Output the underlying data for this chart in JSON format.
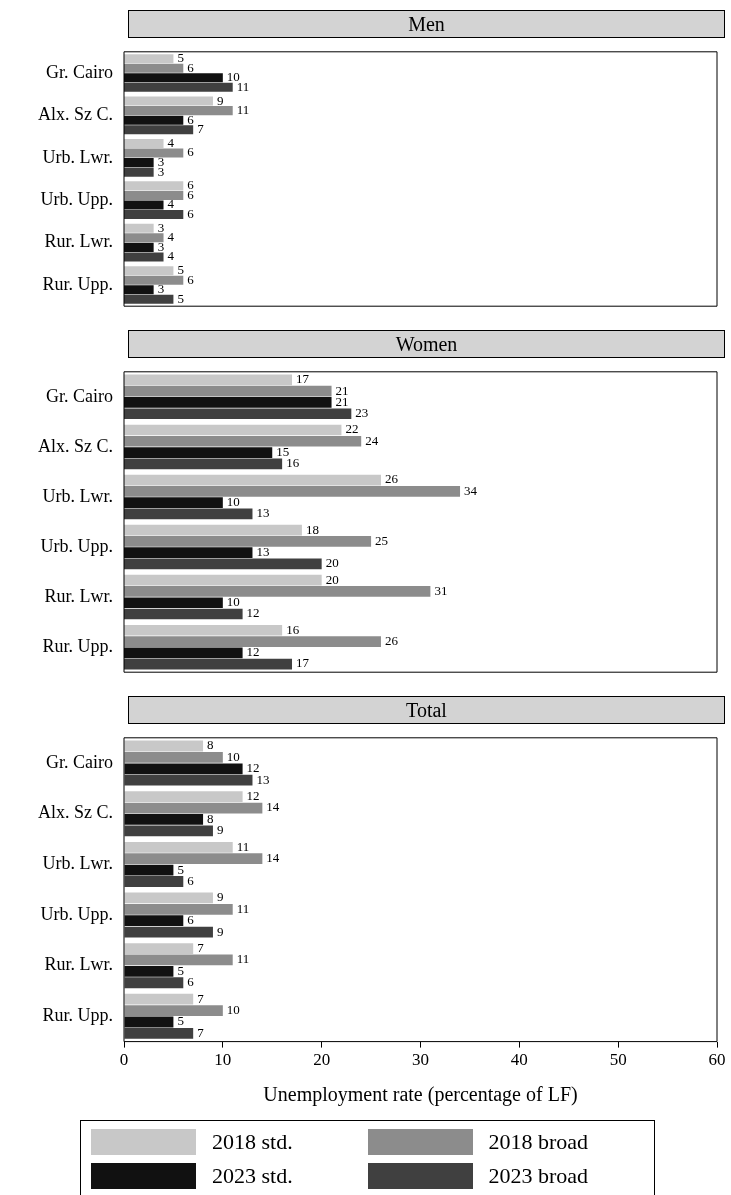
{
  "chart_data": [
    {
      "type": "bar",
      "orientation": "horizontal",
      "title": "Men",
      "categories": [
        "Gr. Cairo",
        "Alx. Sz C.",
        "Urb. Lwr.",
        "Urb. Upp.",
        "Rur. Lwr.",
        "Rur. Upp."
      ],
      "series": [
        {
          "color": "#c8c8c8",
          "values": [
            5,
            9,
            4,
            6,
            3,
            5
          ]
        },
        {
          "color": "#8c8c8c",
          "values": [
            6,
            11,
            6,
            6,
            4,
            6
          ]
        },
        {
          "color": "#111111",
          "values": [
            10,
            6,
            3,
            4,
            3,
            3
          ]
        },
        {
          "color": "#404040",
          "values": [
            11,
            7,
            3,
            6,
            4,
            5
          ]
        }
      ],
      "xlim": [
        0,
        60
      ],
      "xticks": [
        0,
        10,
        20,
        30,
        40,
        50,
        60
      ],
      "tick_labels": "y",
      "data_labels": true,
      "grid": false,
      "legend": false
    },
    {
      "type": "bar",
      "orientation": "horizontal",
      "title": "Women",
      "categories": [
        "Gr. Cairo",
        "Alx. Sz C.",
        "Urb. Lwr.",
        "Urb. Upp.",
        "Rur. Lwr.",
        "Rur. Upp."
      ],
      "series": [
        {
          "color": "#c8c8c8",
          "values": [
            17,
            22,
            26,
            18,
            20,
            16
          ]
        },
        {
          "color": "#8c8c8c",
          "values": [
            21,
            24,
            34,
            25,
            31,
            26
          ]
        },
        {
          "color": "#111111",
          "values": [
            21,
            15,
            10,
            13,
            10,
            12
          ]
        },
        {
          "color": "#404040",
          "values": [
            23,
            16,
            13,
            20,
            12,
            17
          ]
        }
      ],
      "xlim": [
        0,
        60
      ],
      "xticks": [
        0,
        10,
        20,
        30,
        40,
        50,
        60
      ],
      "tick_labels": "y",
      "data_labels": true,
      "grid": false,
      "legend": false
    },
    {
      "type": "bar",
      "orientation": "horizontal",
      "title": "Total",
      "xlabel": "Unemployment rate (percentage of LF)",
      "categories": [
        "Gr. Cairo",
        "Alx. Sz C.",
        "Urb. Lwr.",
        "Urb. Upp.",
        "Rur. Lwr.",
        "Rur. Upp."
      ],
      "series": [
        {
          "name": "2018 std.",
          "color": "#c8c8c8",
          "values": [
            8,
            12,
            11,
            9,
            7,
            7
          ]
        },
        {
          "name": "2018 broad",
          "color": "#8c8c8c",
          "values": [
            10,
            14,
            14,
            11,
            11,
            10
          ]
        },
        {
          "name": "2023 std.",
          "color": "#111111",
          "values": [
            12,
            8,
            5,
            6,
            5,
            5
          ]
        },
        {
          "name": "2023 broad",
          "color": "#404040",
          "values": [
            13,
            9,
            6,
            9,
            6,
            7
          ]
        }
      ],
      "xlim": [
        0,
        60
      ],
      "xticks": [
        0,
        10,
        20,
        30,
        40,
        50,
        60
      ],
      "data_labels": true,
      "grid": false,
      "legend": "bottom"
    }
  ]
}
